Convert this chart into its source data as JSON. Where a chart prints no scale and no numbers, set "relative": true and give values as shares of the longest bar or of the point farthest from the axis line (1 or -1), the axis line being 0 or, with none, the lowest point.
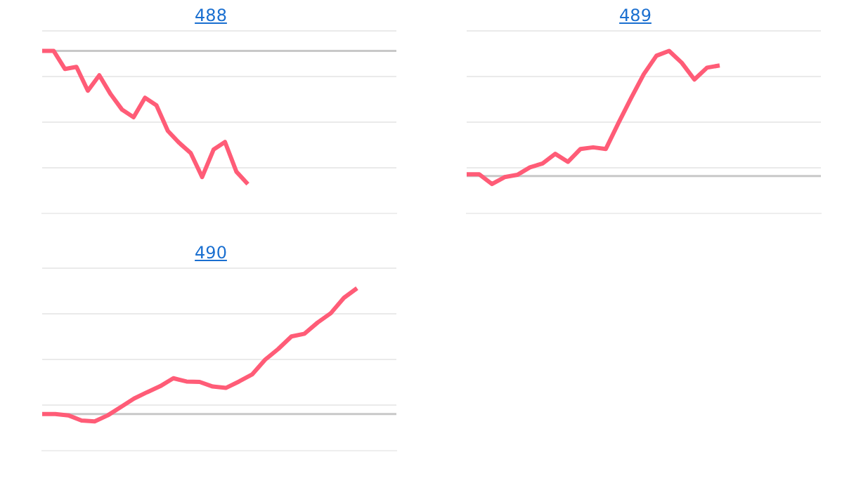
{
  "chart_data": [
    {
      "type": "line",
      "title": "488",
      "relative": true,
      "grid": true,
      "color": "#ff5c77",
      "categories": [
        null,
        null,
        null,
        null,
        null,
        null,
        null,
        null,
        null,
        null,
        null,
        null,
        null,
        null,
        null,
        null,
        null,
        null,
        null,
        null,
        null,
        null,
        null,
        null,
        null,
        null,
        null,
        null,
        null,
        null,
        null,
        null
      ],
      "values": [
        0,
        0,
        -0.136,
        -0.12,
        -0.299,
        -0.183,
        -0.326,
        -0.442,
        -0.498,
        -0.352,
        -0.409,
        -0.601,
        -0.691,
        -0.767,
        -0.947,
        -0.741,
        -0.684,
        -0.907,
        -1,
        null,
        null,
        null,
        null,
        null,
        null,
        null,
        null,
        null,
        null,
        null,
        null,
        null
      ]
    },
    {
      "type": "line",
      "title": "489",
      "relative": true,
      "grid": true,
      "color": "#ff5c77",
      "categories": [
        null,
        null,
        null,
        null,
        null,
        null,
        null,
        null,
        null,
        null,
        null,
        null,
        null,
        null,
        null,
        null,
        null,
        null,
        null,
        null,
        null,
        null,
        null,
        null,
        null,
        null,
        null,
        null,
        null
      ],
      "values": [
        0.013,
        0.013,
        -0.065,
        -0.009,
        0.009,
        0.069,
        0.1,
        0.177,
        0.113,
        0.216,
        0.229,
        0.216,
        0.424,
        0.623,
        0.814,
        0.961,
        1,
        0.905,
        0.771,
        0.866,
        0.883,
        null,
        null,
        null,
        null,
        null,
        null,
        null,
        null
      ]
    },
    {
      "type": "line",
      "title": "490",
      "relative": true,
      "grid": true,
      "color": "#ff5c77",
      "categories": [
        null,
        null,
        null,
        null,
        null,
        null,
        null,
        null,
        null,
        null,
        null,
        null,
        null,
        null,
        null,
        null,
        null,
        null,
        null,
        null,
        null,
        null,
        null,
        null,
        null,
        null,
        null,
        null
      ],
      "values": [
        0,
        0,
        -0.011,
        -0.052,
        -0.059,
        -0.011,
        0.055,
        0.122,
        0.173,
        0.221,
        0.284,
        0.258,
        0.255,
        0.218,
        0.207,
        0.258,
        0.314,
        0.432,
        0.517,
        0.616,
        0.638,
        0.727,
        0.801,
        0.923,
        1,
        null,
        null,
        null
      ]
    }
  ]
}
